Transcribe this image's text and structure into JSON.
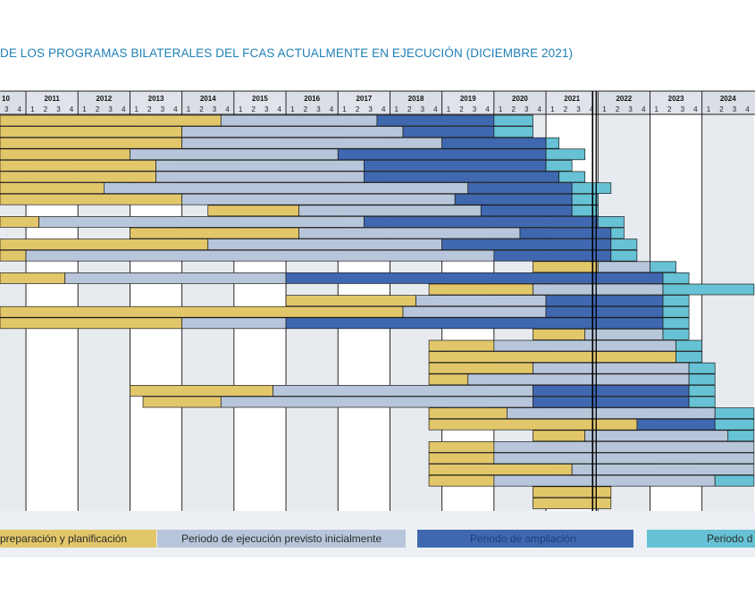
{
  "title": "DE LOS PROGRAMAS BILATERALES DEL FCAS ACTUALMENTE EN EJECUCIÓN (DICIEMBRE 2021)",
  "colors": {
    "preparation": "#e2c76a",
    "execution": "#b7c6da",
    "extension": "#3f68b0",
    "additional": "#66c2d4",
    "header_bg": "#d6dbe3",
    "odd_col_bg": "#e7ebf0",
    "grid_line": "#111111"
  },
  "legend": [
    {
      "label": "preparación y planificación",
      "color": "#e2c76a",
      "text_color": "#2a2a2a"
    },
    {
      "label": "Periodo de ejecución previsto inicialmente",
      "color": "#b7c6da",
      "text_color": "#2a2a2a"
    },
    {
      "label": "Periodo de ampliación",
      "color": "#3f68b0",
      "text_color": "#1f3f7a"
    },
    {
      "label": "Periodo d",
      "color": "#66c2d4",
      "text_color": "#2a2a2a"
    }
  ],
  "chart_data": {
    "type": "gantt",
    "title": "DE LOS PROGRAMAS BILATERALES DEL FCAS ACTUALMENTE EN EJECUCIÓN (DICIEMBRE 2021)",
    "x_unit": "quarter",
    "year_labels": [
      "10",
      "2011",
      "2012",
      "2013",
      "2014",
      "2015",
      "2016",
      "2017",
      "2018",
      "2019",
      "2020",
      "2021",
      "2022",
      "2023",
      "2024"
    ],
    "quarter_labels": [
      "1",
      "2",
      "3",
      "4"
    ],
    "first_visible_quarter": "2010-Q3",
    "current_date_marker": "2021-12",
    "grid": true,
    "rows": [
      {
        "segments": [
          [
            "preparation",
            2010.5,
            2014.75
          ],
          [
            "execution",
            2014.75,
            2017.75
          ],
          [
            "extension",
            2017.75,
            2020.0
          ],
          [
            "additional",
            2020.0,
            2020.75
          ]
        ]
      },
      {
        "segments": [
          [
            "preparation",
            2010.5,
            2014.0
          ],
          [
            "execution",
            2014.0,
            2018.25
          ],
          [
            "extension",
            2018.25,
            2020.0
          ],
          [
            "additional",
            2020.0,
            2020.75
          ]
        ]
      },
      {
        "segments": [
          [
            "preparation",
            2010.25,
            2014.0
          ],
          [
            "execution",
            2014.0,
            2019.0
          ],
          [
            "extension",
            2019.0,
            2021.0
          ],
          [
            "additional",
            2021.0,
            2021.25
          ]
        ]
      },
      {
        "segments": [
          [
            "preparation",
            2010.5,
            2013.0
          ],
          [
            "execution",
            2013.0,
            2017.0
          ],
          [
            "extension",
            2017.0,
            2021.0
          ],
          [
            "additional",
            2021.0,
            2021.75
          ]
        ]
      },
      {
        "segments": [
          [
            "preparation",
            2010.5,
            2013.5
          ],
          [
            "execution",
            2013.5,
            2017.5
          ],
          [
            "extension",
            2017.5,
            2021.0
          ],
          [
            "additional",
            2021.0,
            2021.5
          ]
        ]
      },
      {
        "segments": [
          [
            "preparation",
            2010.5,
            2013.5
          ],
          [
            "execution",
            2013.5,
            2017.5
          ],
          [
            "extension",
            2017.5,
            2021.25
          ],
          [
            "additional",
            2021.25,
            2021.75
          ]
        ]
      },
      {
        "segments": [
          [
            "preparation",
            2010.5,
            2012.5
          ],
          [
            "execution",
            2012.5,
            2019.5
          ],
          [
            "extension",
            2019.5,
            2021.5
          ],
          [
            "additional",
            2021.5,
            2022.25
          ]
        ]
      },
      {
        "segments": [
          [
            "preparation",
            2010.25,
            2014.0
          ],
          [
            "execution",
            2014.0,
            2019.25
          ],
          [
            "extension",
            2019.25,
            2021.5
          ],
          [
            "additional",
            2021.5,
            2022.0
          ]
        ]
      },
      {
        "segments": [
          [
            "preparation",
            2014.5,
            2016.25
          ],
          [
            "execution",
            2016.25,
            2019.75
          ],
          [
            "extension",
            2019.75,
            2021.5
          ],
          [
            "additional",
            2021.5,
            2022.0
          ]
        ]
      },
      {
        "segments": [
          [
            "preparation",
            2010.25,
            2011.25
          ],
          [
            "execution",
            2011.25,
            2017.5
          ],
          [
            "extension",
            2017.5,
            2022.0
          ],
          [
            "additional",
            2022.0,
            2022.5
          ]
        ]
      },
      {
        "segments": [
          [
            "preparation",
            2013.0,
            2016.25
          ],
          [
            "execution",
            2016.25,
            2020.5
          ],
          [
            "extension",
            2020.5,
            2022.25
          ],
          [
            "additional",
            2022.25,
            2022.5
          ]
        ]
      },
      {
        "segments": [
          [
            "preparation",
            2010.25,
            2014.5
          ],
          [
            "execution",
            2014.5,
            2019.0
          ],
          [
            "extension",
            2019.0,
            2022.25
          ],
          [
            "additional",
            2022.25,
            2022.75
          ]
        ]
      },
      {
        "segments": [
          [
            "preparation",
            2010.25,
            2011.0
          ],
          [
            "execution",
            2011.0,
            2020.0
          ],
          [
            "extension",
            2020.0,
            2022.25
          ],
          [
            "additional",
            2022.25,
            2022.75
          ]
        ]
      },
      {
        "segments": [
          [
            "preparation",
            2020.75,
            2022.0
          ],
          [
            "execution",
            2022.0,
            2023.0
          ],
          [
            "additional",
            2023.0,
            2023.5
          ]
        ]
      },
      {
        "segments": [
          [
            "preparation",
            2010.5,
            2011.75
          ],
          [
            "execution",
            2011.75,
            2016.0
          ],
          [
            "extension",
            2016.0,
            2023.25
          ],
          [
            "additional",
            2023.25,
            2023.75
          ]
        ]
      },
      {
        "segments": [
          [
            "preparation",
            2018.75,
            2020.75
          ],
          [
            "execution",
            2020.75,
            2023.25
          ],
          [
            "additional",
            2023.25,
            2025.0
          ]
        ]
      },
      {
        "segments": [
          [
            "preparation",
            2016.0,
            2018.5
          ],
          [
            "execution",
            2018.5,
            2021.0
          ],
          [
            "extension",
            2021.0,
            2023.25
          ],
          [
            "additional",
            2023.25,
            2023.75
          ]
        ]
      },
      {
        "segments": [
          [
            "preparation",
            2010.25,
            2018.25
          ],
          [
            "execution",
            2018.25,
            2021.0
          ],
          [
            "extension",
            2021.0,
            2023.25
          ],
          [
            "additional",
            2023.25,
            2023.75
          ]
        ]
      },
      {
        "segments": [
          [
            "preparation",
            2010.5,
            2014.0
          ],
          [
            "execution",
            2014.0,
            2016.0
          ],
          [
            "extension",
            2016.0,
            2023.25
          ],
          [
            "additional",
            2023.25,
            2023.75
          ]
        ]
      },
      {
        "segments": [
          [
            "preparation",
            2020.75,
            2021.75
          ],
          [
            "execution",
            2021.75,
            2023.25
          ],
          [
            "additional",
            2023.25,
            2023.75
          ]
        ]
      },
      {
        "segments": [
          [
            "preparation",
            2018.75,
            2020.0
          ],
          [
            "execution",
            2020.0,
            2023.5
          ],
          [
            "additional",
            2023.5,
            2024.0
          ]
        ]
      },
      {
        "segments": [
          [
            "preparation",
            2018.75,
            2023.5
          ],
          [
            "additional",
            2023.5,
            2024.0
          ]
        ]
      },
      {
        "segments": [
          [
            "preparation",
            2018.75,
            2020.75
          ],
          [
            "execution",
            2020.75,
            2023.75
          ],
          [
            "additional",
            2023.75,
            2024.25
          ]
        ]
      },
      {
        "segments": [
          [
            "preparation",
            2018.75,
            2019.5
          ],
          [
            "execution",
            2019.5,
            2023.75
          ],
          [
            "additional",
            2023.75,
            2024.25
          ]
        ]
      },
      {
        "segments": [
          [
            "preparation",
            2013.0,
            2015.75
          ],
          [
            "execution",
            2015.75,
            2020.75
          ],
          [
            "extension",
            2020.75,
            2023.75
          ],
          [
            "additional",
            2023.75,
            2024.25
          ]
        ]
      },
      {
        "segments": [
          [
            "preparation",
            2013.25,
            2014.75
          ],
          [
            "execution",
            2014.75,
            2020.75
          ],
          [
            "extension",
            2020.75,
            2023.75
          ],
          [
            "additional",
            2023.75,
            2024.25
          ]
        ]
      },
      {
        "segments": [
          [
            "preparation",
            2018.75,
            2020.25
          ],
          [
            "execution",
            2020.25,
            2024.25
          ],
          [
            "additional",
            2024.25,
            2025.0
          ]
        ]
      },
      {
        "segments": [
          [
            "preparation",
            2018.75,
            2022.75
          ],
          [
            "extension",
            2022.75,
            2024.25
          ],
          [
            "additional",
            2024.25,
            2025.0
          ]
        ]
      },
      {
        "segments": [
          [
            "preparation",
            2020.75,
            2021.75
          ],
          [
            "execution",
            2021.75,
            2024.5
          ],
          [
            "additional",
            2024.5,
            2025.0
          ]
        ]
      },
      {
        "segments": [
          [
            "preparation",
            2018.75,
            2020.0
          ],
          [
            "execution",
            2020.0,
            2025.0
          ]
        ]
      },
      {
        "segments": [
          [
            "preparation",
            2018.75,
            2020.0
          ],
          [
            "execution",
            2020.0,
            2025.0
          ]
        ]
      },
      {
        "segments": [
          [
            "preparation",
            2018.75,
            2021.5
          ],
          [
            "execution",
            2021.5,
            2025.0
          ]
        ]
      },
      {
        "segments": [
          [
            "preparation",
            2018.75,
            2020.0
          ],
          [
            "execution",
            2020.0,
            2024.25
          ],
          [
            "additional",
            2024.25,
            2025.0
          ]
        ]
      },
      {
        "segments": [
          [
            "preparation",
            2020.75,
            2022.25
          ]
        ]
      },
      {
        "segments": [
          [
            "preparation",
            2020.75,
            2022.25
          ]
        ]
      }
    ]
  }
}
